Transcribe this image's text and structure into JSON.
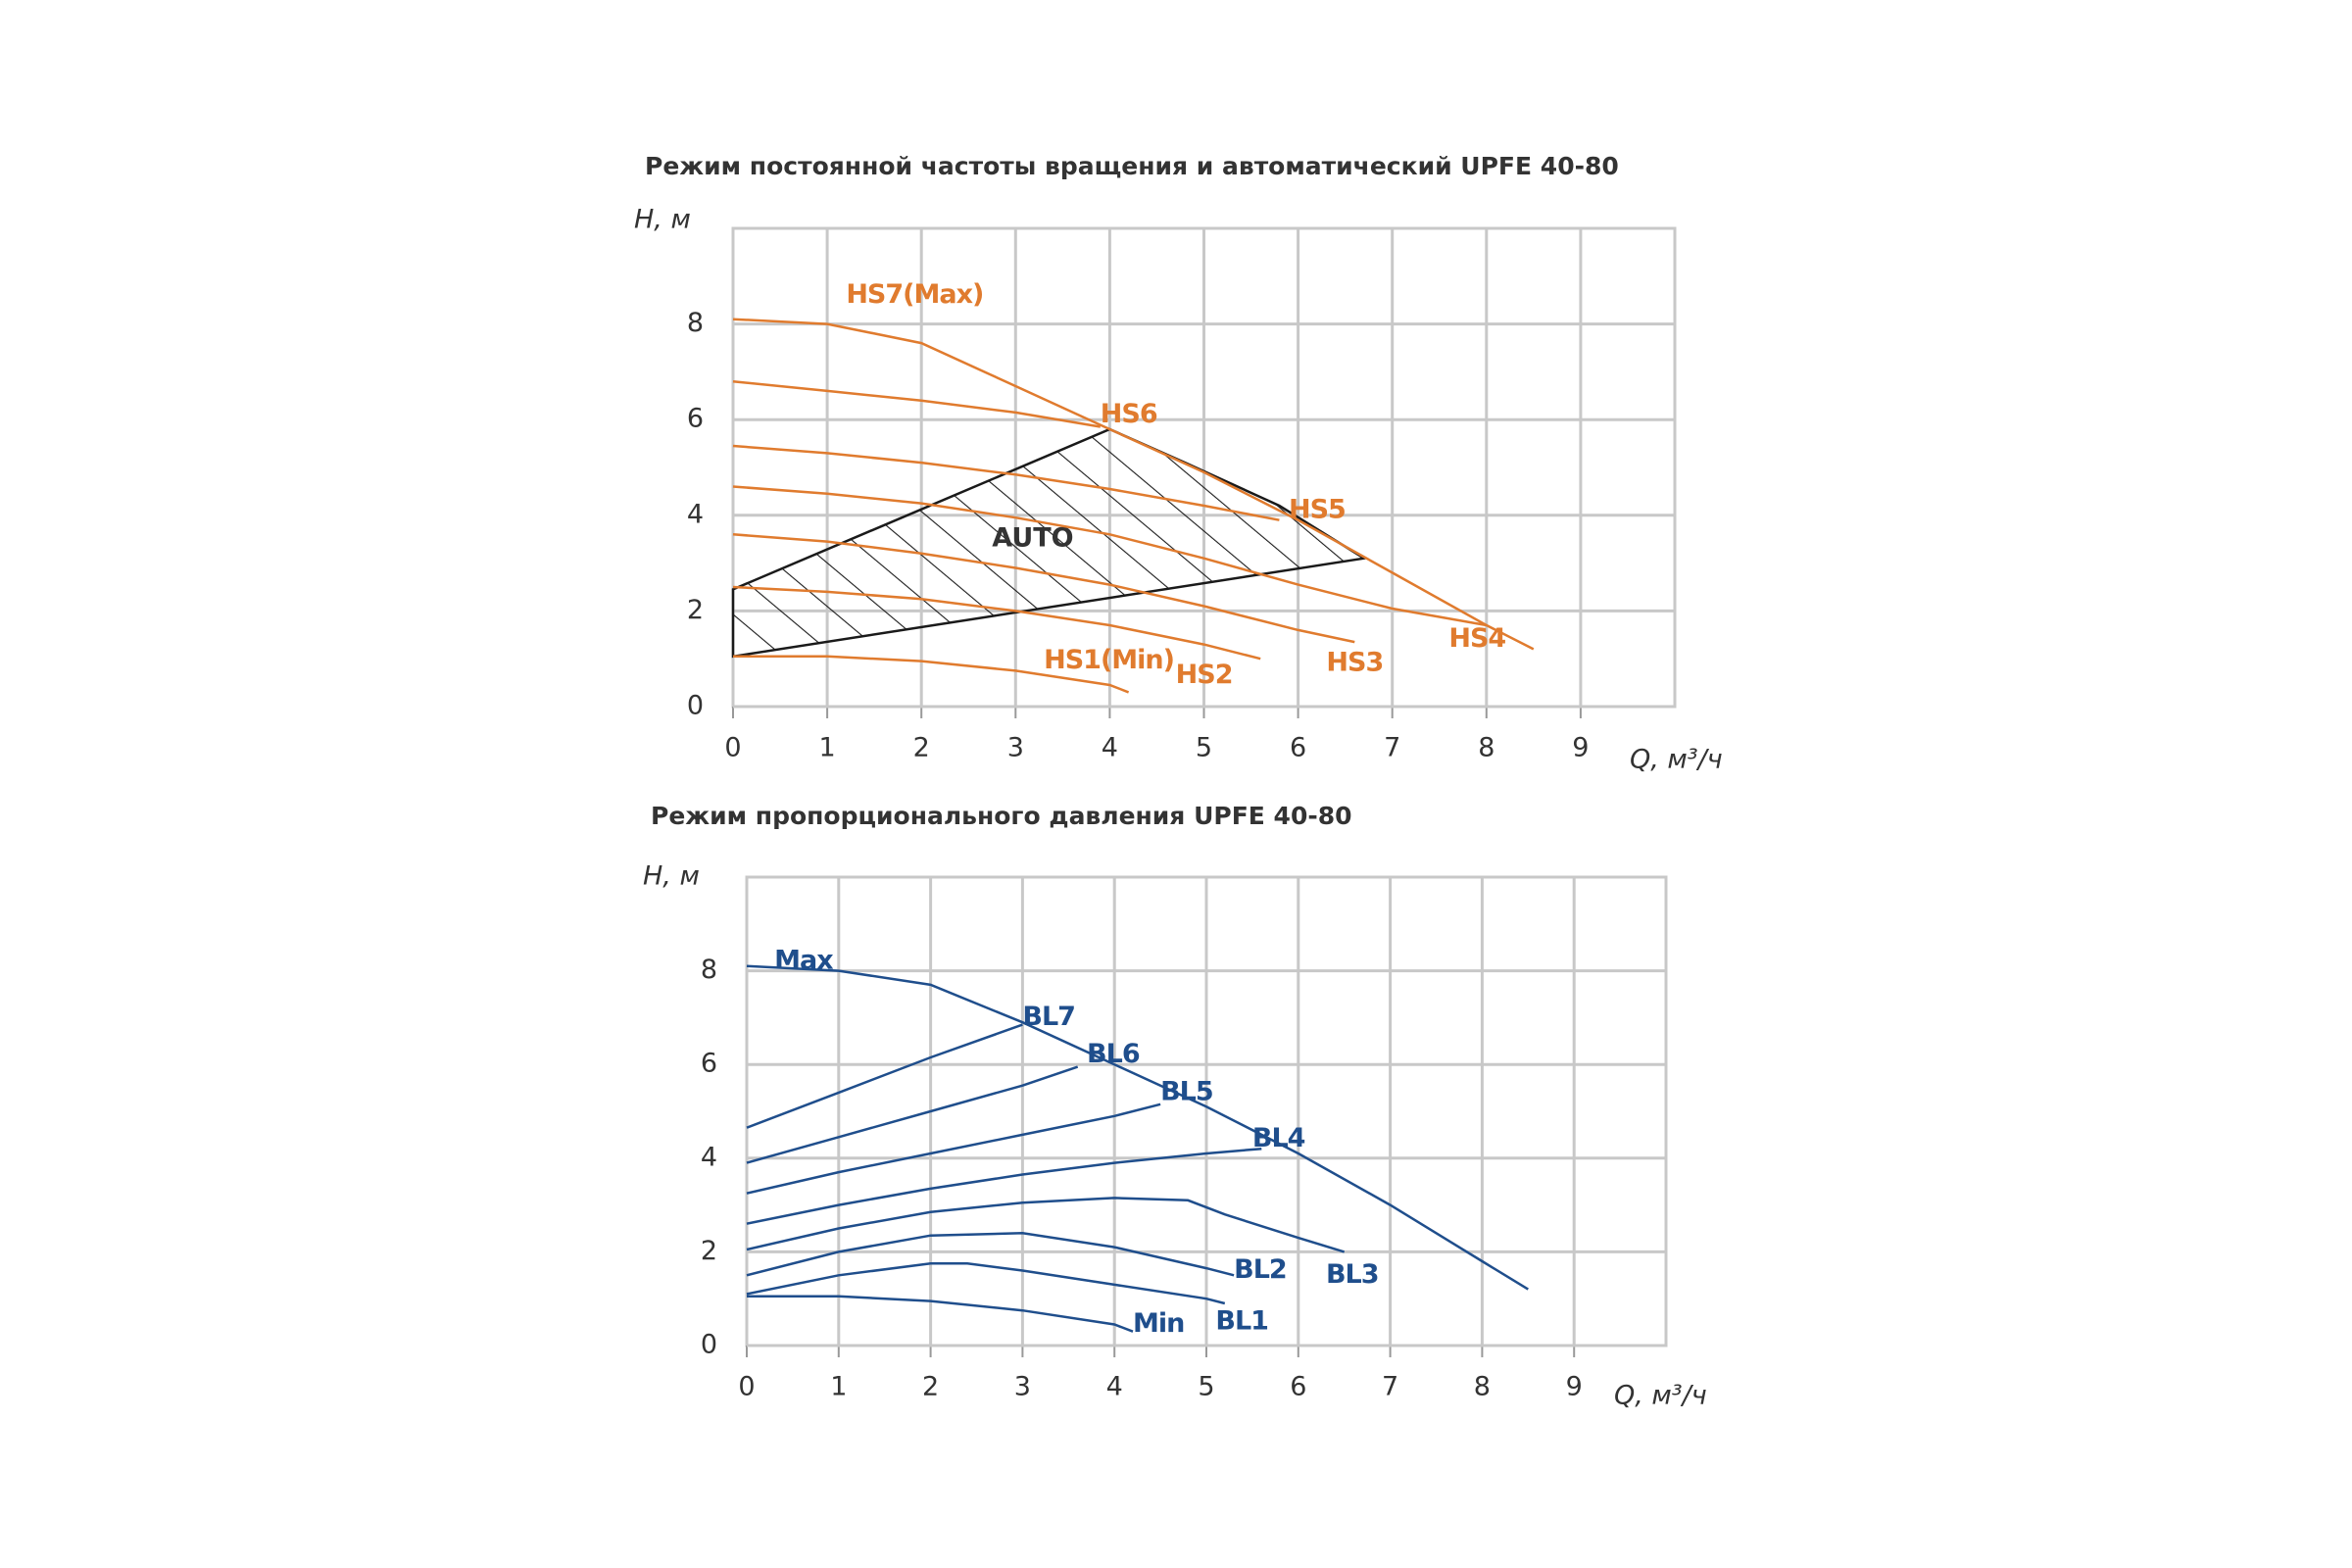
{
  "chart_data": [
    {
      "type": "line",
      "title": "Режим постоянной частоты вращения и автоматический  UPFE 40-80",
      "x_label": "Q, м³/ч",
      "y_label": "H, м",
      "xlim": [
        0,
        10
      ],
      "ylim": [
        0,
        10
      ],
      "xticks": [
        0,
        1,
        2,
        3,
        4,
        5,
        6,
        7,
        8,
        9
      ],
      "yticks": [
        0,
        2,
        4,
        6,
        8
      ],
      "grid": true,
      "series": [
        {
          "name": "AUTO",
          "color": "#1a1a1a",
          "fill": "hatch",
          "x": [
            0,
            4,
            4.8,
            5.8,
            6.7,
            0
          ],
          "values": [
            2.45,
            5.8,
            5.1,
            4.2,
            3.1,
            1.05
          ]
        },
        {
          "name": "HS7(Max)",
          "color": "#e07b2e",
          "x": [
            0,
            1,
            2,
            3,
            4,
            5,
            6,
            7,
            8,
            8.5
          ],
          "values": [
            8.1,
            8.0,
            7.6,
            6.7,
            5.8,
            4.9,
            3.9,
            2.8,
            1.7,
            1.2
          ]
        },
        {
          "name": "HS6",
          "color": "#e07b2e",
          "x": [
            0,
            1,
            2,
            3,
            3.9
          ],
          "values": [
            6.8,
            6.6,
            6.4,
            6.15,
            5.85
          ]
        },
        {
          "name": "HS5",
          "color": "#e07b2e",
          "x": [
            0,
            1,
            2,
            3,
            4,
            5,
            5.8
          ],
          "values": [
            5.45,
            5.3,
            5.1,
            4.85,
            4.55,
            4.2,
            3.9
          ]
        },
        {
          "name": "HS4",
          "color": "#e07b2e",
          "x": [
            0,
            1,
            2,
            3,
            4,
            5,
            6,
            7,
            8
          ],
          "values": [
            4.6,
            4.45,
            4.25,
            3.95,
            3.6,
            3.1,
            2.55,
            2.05,
            1.7
          ]
        },
        {
          "name": "HS3",
          "color": "#e07b2e",
          "x": [
            0,
            1,
            2,
            3,
            4,
            5,
            6,
            6.6
          ],
          "values": [
            3.6,
            3.45,
            3.2,
            2.9,
            2.55,
            2.1,
            1.6,
            1.35
          ]
        },
        {
          "name": "HS2",
          "color": "#e07b2e",
          "x": [
            0,
            1,
            2,
            3,
            4,
            5,
            5.6
          ],
          "values": [
            2.5,
            2.4,
            2.25,
            2.0,
            1.7,
            1.3,
            1.0
          ]
        },
        {
          "name": "HS1(Min)",
          "color": "#e07b2e",
          "x": [
            0,
            1,
            2,
            3,
            4,
            4.2
          ],
          "values": [
            1.05,
            1.05,
            0.95,
            0.75,
            0.45,
            0.3
          ]
        }
      ]
    },
    {
      "type": "line",
      "title": "Режим пропорционального давления UPFE 40-80",
      "x_label": "Q, м³/ч",
      "y_label": "H, м",
      "xlim": [
        0,
        10
      ],
      "ylim": [
        0,
        10
      ],
      "xticks": [
        0,
        1,
        2,
        3,
        4,
        5,
        6,
        7,
        8,
        9
      ],
      "yticks": [
        0,
        2,
        4,
        6,
        8
      ],
      "grid": true,
      "series": [
        {
          "name": "Max",
          "color": "#1f4e8c",
          "x": [
            0,
            1,
            2,
            3,
            4,
            5,
            6,
            7,
            8,
            8.5
          ],
          "values": [
            8.1,
            8.0,
            7.7,
            6.9,
            6.0,
            5.1,
            4.1,
            3.0,
            1.8,
            1.2
          ]
        },
        {
          "name": "BL7",
          "color": "#1f4e8c",
          "x": [
            0,
            1,
            2,
            3
          ],
          "values": [
            4.65,
            5.4,
            6.15,
            6.85
          ]
        },
        {
          "name": "BL6",
          "color": "#1f4e8c",
          "x": [
            0,
            1,
            2,
            3,
            3.6
          ],
          "values": [
            3.9,
            4.45,
            5.0,
            5.55,
            5.95
          ]
        },
        {
          "name": "BL5",
          "color": "#1f4e8c",
          "x": [
            0,
            1,
            2,
            3,
            4,
            4.5
          ],
          "values": [
            3.25,
            3.7,
            4.1,
            4.5,
            4.9,
            5.15
          ]
        },
        {
          "name": "BL4",
          "color": "#1f4e8c",
          "x": [
            0,
            1,
            2,
            3,
            4,
            5,
            5.6
          ],
          "values": [
            2.6,
            3.0,
            3.35,
            3.65,
            3.9,
            4.1,
            4.2
          ]
        },
        {
          "name": "BL3",
          "color": "#1f4e8c",
          "x": [
            0,
            1,
            2,
            3,
            4,
            4.8,
            5.2,
            6,
            6.5
          ],
          "values": [
            2.05,
            2.5,
            2.85,
            3.05,
            3.15,
            3.1,
            2.8,
            2.3,
            2.0
          ]
        },
        {
          "name": "BL2",
          "color": "#1f4e8c",
          "x": [
            0,
            1,
            2,
            3,
            4,
            5,
            5.3
          ],
          "values": [
            1.5,
            2.0,
            2.35,
            2.4,
            2.1,
            1.65,
            1.5
          ]
        },
        {
          "name": "BL1",
          "color": "#1f4e8c",
          "x": [
            0,
            1,
            2,
            2.4,
            3,
            4,
            5,
            5.2
          ],
          "values": [
            1.1,
            1.5,
            1.75,
            1.75,
            1.6,
            1.3,
            1.0,
            0.9
          ]
        },
        {
          "name": "Min",
          "color": "#1f4e8c",
          "x": [
            0,
            1,
            2,
            3,
            4,
            4.2
          ],
          "values": [
            1.05,
            1.05,
            0.95,
            0.75,
            0.45,
            0.3
          ]
        }
      ]
    }
  ]
}
